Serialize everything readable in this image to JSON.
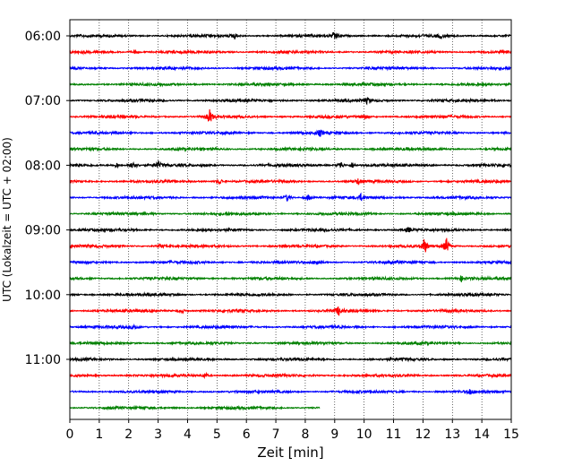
{
  "chart_data": {
    "type": "line",
    "title": "",
    "xlabel": "Zeit  [min]",
    "ylabel": "UTC (Lokalzeit = UTC + 02:00)",
    "xlim": [
      0,
      15
    ],
    "x_ticks": [
      0,
      1,
      2,
      3,
      4,
      5,
      6,
      7,
      8,
      9,
      10,
      11,
      12,
      13,
      14,
      15
    ],
    "y_ticks": [
      "06:00",
      "07:00",
      "08:00",
      "09:00",
      "10:00",
      "11:00"
    ],
    "grid": "vertical dotted lines at each minute",
    "legend": "none",
    "trace_colors": [
      "#000000",
      "#ff0000",
      "#0000ff",
      "#008000"
    ],
    "trace_count": 24,
    "first_trace_start": "06:00",
    "trace_length_min": 15,
    "last_trace_end_min": 8.5,
    "events": [
      {
        "trace": "06:00",
        "x_min": 5.6,
        "amplitude": 0.35
      },
      {
        "trace": "06:00",
        "x_min": 9.0,
        "amplitude": 0.55
      },
      {
        "trace": "06:00",
        "x_min": 12.6,
        "amplitude": 0.3
      },
      {
        "trace": "06:15",
        "x_min": 2.2,
        "amplitude": 0.25
      },
      {
        "trace": "07:00",
        "x_min": 10.1,
        "amplitude": 0.3
      },
      {
        "trace": "07:15",
        "x_min": 4.75,
        "amplitude": 0.8
      },
      {
        "trace": "07:15",
        "x_min": 10.0,
        "amplitude": 0.35
      },
      {
        "trace": "07:30",
        "x_min": 8.5,
        "amplitude": 0.3
      },
      {
        "trace": "08:00",
        "x_min": 1.6,
        "amplitude": 0.3
      },
      {
        "trace": "08:00",
        "x_min": 2.15,
        "amplitude": 0.75
      },
      {
        "trace": "08:00",
        "x_min": 3.0,
        "amplitude": 0.4
      },
      {
        "trace": "08:00",
        "x_min": 9.2,
        "amplitude": 0.45
      },
      {
        "trace": "08:00",
        "x_min": 9.6,
        "amplitude": 0.3
      },
      {
        "trace": "08:15",
        "x_min": 5.1,
        "amplitude": 0.35
      },
      {
        "trace": "08:15",
        "x_min": 9.8,
        "amplitude": 0.3
      },
      {
        "trace": "08:30",
        "x_min": 7.4,
        "amplitude": 0.45
      },
      {
        "trace": "08:30",
        "x_min": 8.1,
        "amplitude": 0.4
      },
      {
        "trace": "08:30",
        "x_min": 9.9,
        "amplitude": 0.35
      },
      {
        "trace": "09:00",
        "x_min": 11.5,
        "amplitude": 0.3
      },
      {
        "trace": "09:15",
        "x_min": 12.05,
        "amplitude": 0.9
      },
      {
        "trace": "09:15",
        "x_min": 12.8,
        "amplitude": 0.9
      },
      {
        "trace": "09:15",
        "x_min": 3.1,
        "amplitude": 0.25
      },
      {
        "trace": "09:30",
        "x_min": 8.4,
        "amplitude": 0.35
      },
      {
        "trace": "09:45",
        "x_min": 13.3,
        "amplitude": 0.3
      },
      {
        "trace": "10:15",
        "x_min": 9.15,
        "amplitude": 0.55
      },
      {
        "trace": "10:15",
        "x_min": 3.8,
        "amplitude": 0.3
      },
      {
        "trace": "10:30",
        "x_min": 2.2,
        "amplitude": 0.3
      },
      {
        "trace": "11:15",
        "x_min": 4.6,
        "amplitude": 0.3
      },
      {
        "trace": "11:30",
        "x_min": 13.6,
        "amplitude": 0.3
      }
    ]
  }
}
